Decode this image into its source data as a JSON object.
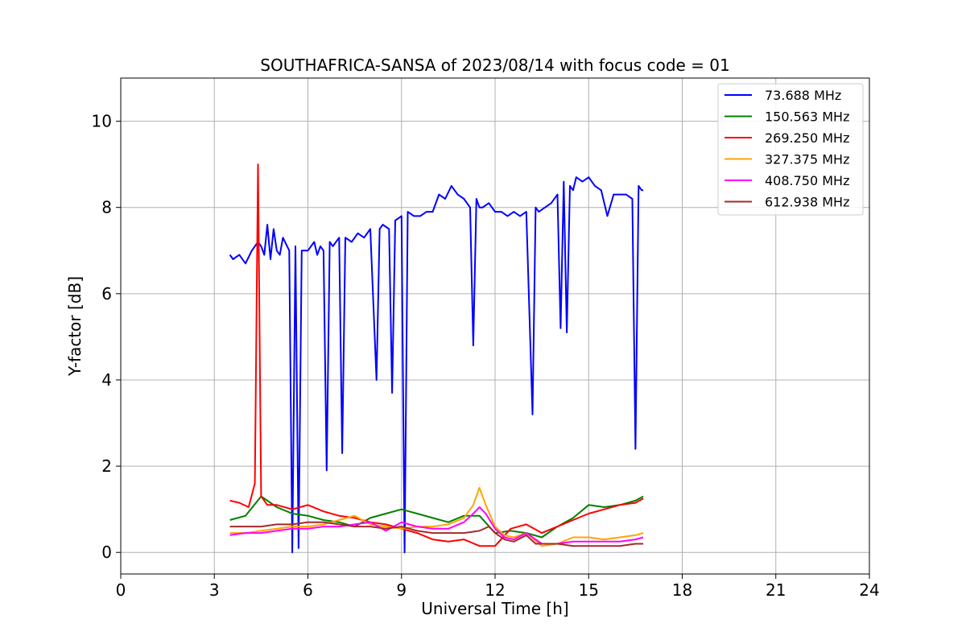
{
  "chart_data": {
    "type": "line",
    "title": "SOUTHAFRICA-SANSA of 2023/08/14 with focus code = 01",
    "xlabel": "Universal Time [h]",
    "ylabel": "Y-factor [dB]",
    "xlim": [
      0,
      24
    ],
    "ylim": [
      -0.5,
      11
    ],
    "xticks": [
      0,
      3,
      6,
      9,
      12,
      15,
      18,
      21,
      24
    ],
    "yticks": [
      0,
      2,
      4,
      6,
      8,
      10
    ],
    "grid": true,
    "legend_position": "top-right",
    "series": [
      {
        "name": " 73.688 MHz",
        "color": "#0000ff",
        "x": [
          3.5,
          3.6,
          3.8,
          4.0,
          4.2,
          4.4,
          4.5,
          4.6,
          4.7,
          4.8,
          4.9,
          5.0,
          5.1,
          5.2,
          5.4,
          5.5,
          5.6,
          5.7,
          5.8,
          6.0,
          6.2,
          6.3,
          6.4,
          6.5,
          6.6,
          6.7,
          6.8,
          7.0,
          7.1,
          7.2,
          7.4,
          7.6,
          7.8,
          8.0,
          8.2,
          8.3,
          8.4,
          8.6,
          8.7,
          8.8,
          9.0,
          9.1,
          9.2,
          9.4,
          9.6,
          9.8,
          10.0,
          10.2,
          10.4,
          10.6,
          10.8,
          11.0,
          11.2,
          11.3,
          11.4,
          11.5,
          11.6,
          11.8,
          12.0,
          12.2,
          12.4,
          12.6,
          12.8,
          13.0,
          13.2,
          13.3,
          13.4,
          13.6,
          13.8,
          14.0,
          14.1,
          14.2,
          14.3,
          14.4,
          14.5,
          14.6,
          14.8,
          15.0,
          15.2,
          15.4,
          15.6,
          15.8,
          16.0,
          16.2,
          16.4,
          16.5,
          16.6,
          16.7,
          16.75
        ],
        "values": [
          6.9,
          6.8,
          6.9,
          6.7,
          7.0,
          7.2,
          7.1,
          6.9,
          7.6,
          6.8,
          7.5,
          7.0,
          6.9,
          7.3,
          7.0,
          0.0,
          7.1,
          0.1,
          7.0,
          7.0,
          7.2,
          6.9,
          7.1,
          7.0,
          1.9,
          7.2,
          7.1,
          7.3,
          2.3,
          7.3,
          7.2,
          7.4,
          7.3,
          7.5,
          4.0,
          7.5,
          7.6,
          7.5,
          3.7,
          7.7,
          7.8,
          0.0,
          7.9,
          7.8,
          7.8,
          7.9,
          7.9,
          8.3,
          8.2,
          8.5,
          8.3,
          8.2,
          8.0,
          4.8,
          8.2,
          8.0,
          8.0,
          8.1,
          7.9,
          7.9,
          7.8,
          7.9,
          7.8,
          7.9,
          3.2,
          8.0,
          7.9,
          8.0,
          8.1,
          8.3,
          5.2,
          8.6,
          5.1,
          8.5,
          8.4,
          8.7,
          8.6,
          8.7,
          8.5,
          8.4,
          7.8,
          8.3,
          8.3,
          8.3,
          8.2,
          2.4,
          8.5,
          8.4,
          8.4
        ]
      },
      {
        "name": "150.563 MHz",
        "color": "#008000",
        "x": [
          3.5,
          4.0,
          4.5,
          5.0,
          5.5,
          6.0,
          6.5,
          7.0,
          7.5,
          8.0,
          8.5,
          9.0,
          9.5,
          10.0,
          10.5,
          11.0,
          11.5,
          12.0,
          12.5,
          13.0,
          13.5,
          14.0,
          14.5,
          15.0,
          15.5,
          16.0,
          16.5,
          16.75
        ],
        "values": [
          0.75,
          0.85,
          1.3,
          1.05,
          0.9,
          0.85,
          0.75,
          0.7,
          0.6,
          0.8,
          0.9,
          1.0,
          0.9,
          0.8,
          0.7,
          0.85,
          0.85,
          0.45,
          0.5,
          0.45,
          0.35,
          0.6,
          0.8,
          1.1,
          1.05,
          1.1,
          1.2,
          1.3
        ]
      },
      {
        "name": "269.250 MHz",
        "color": "#ff0000",
        "x": [
          3.5,
          3.8,
          4.1,
          4.3,
          4.4,
          4.5,
          4.7,
          5.0,
          5.5,
          6.0,
          6.5,
          7.0,
          7.5,
          8.0,
          8.5,
          9.0,
          9.5,
          10.0,
          10.5,
          11.0,
          11.5,
          12.0,
          12.5,
          13.0,
          13.5,
          14.0,
          14.5,
          15.0,
          15.5,
          16.0,
          16.5,
          16.75
        ],
        "values": [
          1.2,
          1.15,
          1.05,
          1.6,
          9.0,
          1.3,
          1.1,
          1.1,
          1.0,
          1.1,
          0.95,
          0.85,
          0.8,
          0.7,
          0.65,
          0.55,
          0.45,
          0.3,
          0.25,
          0.3,
          0.15,
          0.15,
          0.55,
          0.65,
          0.45,
          0.6,
          0.75,
          0.9,
          1.0,
          1.1,
          1.15,
          1.25
        ]
      },
      {
        "name": "327.375 MHz",
        "color": "#ffa500",
        "x": [
          3.5,
          4.0,
          4.5,
          5.0,
          5.5,
          6.0,
          6.5,
          7.0,
          7.5,
          8.0,
          8.5,
          9.0,
          9.5,
          10.0,
          10.5,
          11.0,
          11.3,
          11.5,
          11.7,
          12.0,
          12.3,
          12.6,
          13.0,
          13.5,
          14.0,
          14.5,
          15.0,
          15.5,
          16.0,
          16.5,
          16.75
        ],
        "values": [
          0.45,
          0.45,
          0.5,
          0.55,
          0.6,
          0.6,
          0.65,
          0.75,
          0.85,
          0.65,
          0.6,
          0.55,
          0.6,
          0.6,
          0.65,
          0.8,
          1.1,
          1.5,
          1.1,
          0.6,
          0.4,
          0.35,
          0.45,
          0.15,
          0.2,
          0.35,
          0.35,
          0.3,
          0.35,
          0.4,
          0.45
        ]
      },
      {
        "name": "408.750 MHz",
        "color": "#ff00ff",
        "x": [
          3.5,
          4.0,
          4.5,
          5.0,
          5.5,
          6.0,
          6.5,
          7.0,
          7.5,
          8.0,
          8.5,
          9.0,
          9.5,
          10.0,
          10.5,
          11.0,
          11.3,
          11.5,
          11.7,
          12.0,
          12.3,
          12.6,
          13.0,
          13.5,
          14.0,
          14.5,
          15.0,
          15.5,
          16.0,
          16.5,
          16.75
        ],
        "values": [
          0.4,
          0.45,
          0.45,
          0.5,
          0.55,
          0.55,
          0.6,
          0.6,
          0.65,
          0.7,
          0.5,
          0.7,
          0.6,
          0.55,
          0.55,
          0.7,
          0.9,
          1.05,
          0.9,
          0.55,
          0.35,
          0.3,
          0.45,
          0.2,
          0.2,
          0.25,
          0.25,
          0.25,
          0.25,
          0.3,
          0.35
        ]
      },
      {
        "name": "612.938 MHz",
        "color": "#a52a2a",
        "x": [
          3.5,
          4.0,
          4.5,
          5.0,
          5.5,
          6.0,
          6.5,
          7.0,
          7.5,
          8.0,
          8.5,
          9.0,
          9.5,
          10.0,
          10.5,
          11.0,
          11.5,
          11.8,
          12.0,
          12.3,
          12.6,
          13.0,
          13.3,
          13.6,
          14.0,
          14.5,
          15.0,
          15.5,
          16.0,
          16.5,
          16.75
        ],
        "values": [
          0.6,
          0.6,
          0.6,
          0.65,
          0.65,
          0.7,
          0.7,
          0.65,
          0.6,
          0.6,
          0.55,
          0.6,
          0.5,
          0.45,
          0.45,
          0.45,
          0.5,
          0.6,
          0.45,
          0.3,
          0.25,
          0.4,
          0.2,
          0.2,
          0.2,
          0.15,
          0.15,
          0.15,
          0.15,
          0.2,
          0.2
        ]
      }
    ]
  }
}
